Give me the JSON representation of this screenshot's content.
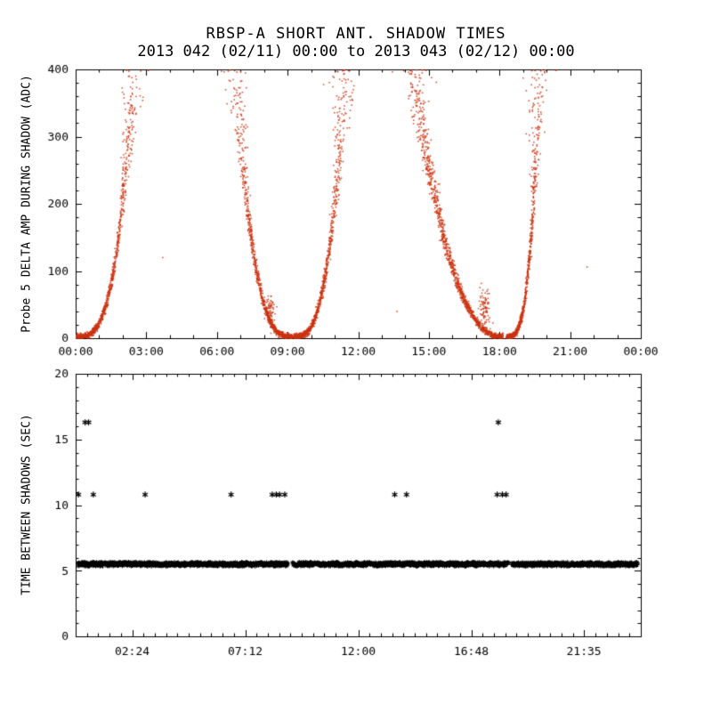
{
  "page": {
    "title_line1": "RBSP-A SHORT ANT. SHADOW TIMES",
    "title_line2": "2013 042 (02/11) 00:00 to 2013 043 (02/12) 00:00"
  },
  "colors": {
    "background": "#ffffff",
    "axis": "#000000",
    "scatter_red": "#cc3311",
    "marker_black": "#000000"
  },
  "chart_data": [
    {
      "type": "scatter",
      "panel": "top",
      "title": "",
      "xlabel": "",
      "ylabel": "Probe 5 DELTA AMP DURING SHADOW (ADC)",
      "xlim": [
        0,
        24
      ],
      "ylim": [
        0,
        400
      ],
      "grid": false,
      "legend": "none",
      "marker": "dot",
      "color": "#cc3311",
      "x_ticks": [
        {
          "value": 0,
          "label": "00:00"
        },
        {
          "value": 3,
          "label": "03:00"
        },
        {
          "value": 6,
          "label": "06:00"
        },
        {
          "value": 9,
          "label": "09:00"
        },
        {
          "value": 12,
          "label": "12:00"
        },
        {
          "value": 15,
          "label": "15:00"
        },
        {
          "value": 18,
          "label": "18:00"
        },
        {
          "value": 21,
          "label": "21:00"
        },
        {
          "value": 24,
          "label": "00:00"
        }
      ],
      "x_minor_step": 1,
      "y_ticks": [
        {
          "value": 0,
          "label": "0"
        },
        {
          "value": 100,
          "label": "100"
        },
        {
          "value": 200,
          "label": "200"
        },
        {
          "value": 300,
          "label": "300"
        },
        {
          "value": 400,
          "label": "400"
        }
      ],
      "y_minor_step": 20,
      "shadow_curves": [
        {
          "kind": "rise",
          "t0": 0.0,
          "t1": 2.45,
          "y0": 2,
          "y1": 400,
          "power": 3.3,
          "n": 900
        },
        {
          "kind": "fall",
          "t0": 6.78,
          "t1": 9.2,
          "y0": 400,
          "y1": 2,
          "power": 3.0,
          "n": 900
        },
        {
          "kind": "rise",
          "t0": 9.25,
          "t1": 11.45,
          "y0": 2,
          "y1": 400,
          "power": 3.0,
          "n": 900
        },
        {
          "kind": "fall",
          "t0": 14.3,
          "t1": 18.15,
          "y0": 400,
          "y1": 2,
          "power": 2.3,
          "n": 1200
        },
        {
          "kind": "rise",
          "t0": 18.3,
          "t1": 19.7,
          "y0": 2,
          "y1": 400,
          "power": 3.3,
          "n": 800
        }
      ],
      "bumps": [
        {
          "t": 8.25,
          "y": 40,
          "spread_t": 0.1,
          "spread_y": 12,
          "n": 70
        },
        {
          "t": 17.35,
          "y": 45,
          "spread_t": 0.13,
          "spread_y": 14,
          "n": 90
        }
      ],
      "stray_points": [
        [
          3.7,
          120
        ],
        [
          13.65,
          40
        ],
        [
          21.72,
          106
        ]
      ]
    },
    {
      "type": "scatter",
      "panel": "bottom",
      "title": "",
      "xlabel": "",
      "ylabel": "TIME BETWEEN SHADOWS (SEC)",
      "xlim": [
        0,
        24
      ],
      "ylim": [
        0,
        20
      ],
      "grid": false,
      "legend": "none",
      "marker": "asterisk",
      "color": "#000000",
      "x_ticks": [
        {
          "value": 2.4,
          "label": "02:24"
        },
        {
          "value": 7.2,
          "label": "07:12"
        },
        {
          "value": 12.0,
          "label": "12:00"
        },
        {
          "value": 16.8,
          "label": "16:48"
        },
        {
          "value": 21.5833,
          "label": "21:35"
        }
      ],
      "x_minor_step": 0.48,
      "y_ticks": [
        {
          "value": 0,
          "label": "0"
        },
        {
          "value": 5,
          "label": "5"
        },
        {
          "value": 10,
          "label": "10"
        },
        {
          "value": 15,
          "label": "15"
        },
        {
          "value": 20,
          "label": "20"
        }
      ],
      "y_minor_step": 1,
      "band": {
        "y": 5.5,
        "x0": 0.1,
        "x1": 23.87,
        "step": 0.016,
        "jitter": 0.3,
        "gaps": [
          [
            9.02,
            9.22
          ],
          [
            18.38,
            18.5
          ]
        ]
      },
      "outlier_groups": [
        {
          "y": 16.3,
          "x": [
            0.4,
            0.55,
            17.95
          ]
        },
        {
          "y": 10.8,
          "x": [
            0.12,
            0.75,
            2.95,
            6.6,
            8.35,
            8.52,
            8.66,
            8.88,
            13.55,
            14.05,
            17.9,
            18.12,
            18.28
          ]
        }
      ]
    }
  ]
}
